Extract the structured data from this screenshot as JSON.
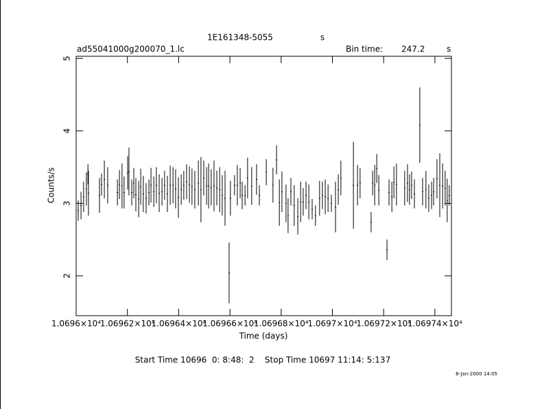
{
  "chart_data": {
    "type": "errorbar",
    "title": "1E161348-5055",
    "title_unit": "s",
    "file_name": "ad55041000g200070_1.lc",
    "bin_time_label": "Bin time:",
    "bin_time": "247.2",
    "bin_time_unit": "s",
    "xlabel": "Time (days)",
    "ylabel": "Counts/s",
    "footer": "Start Time 10696  0: 8:48:  2    Stop Time 10697 11:14: 5:137",
    "date": "6-Jan-2000 14:05",
    "color": "#000000",
    "xlim": [
      10696,
      10697.4645
    ],
    "ylim": [
      1.45,
      5.03
    ],
    "xticks": [
      {
        "value": 10696,
        "label": "1.0696×10⁴"
      },
      {
        "value": 10696.2,
        "label": "1.06962×10⁴"
      },
      {
        "value": 10696.4,
        "label": "1.06964×10⁴"
      },
      {
        "value": 10696.6,
        "label": "1.06966×10⁴"
      },
      {
        "value": 10696.8,
        "label": "1.06968×10⁴"
      },
      {
        "value": 10697,
        "label": "1.0697×10⁴"
      },
      {
        "value": 10697.2,
        "label": "1.06972×10⁴"
      },
      {
        "value": 10697.4,
        "label": "1.06974×10⁴"
      }
    ],
    "yticks": [
      2,
      3,
      4,
      5
    ],
    "x": [
      10696.008,
      10696.019,
      10696.029,
      10696.04,
      10696.046,
      10696.048,
      10696.091,
      10696.099,
      10696.11,
      10696.123,
      10696.161,
      10696.169,
      10696.179,
      10696.187,
      10696.201,
      10696.206,
      10696.217,
      10696.225,
      10696.233,
      10696.244,
      10696.252,
      10696.262,
      10696.273,
      10696.284,
      10696.292,
      10696.303,
      10696.313,
      10696.324,
      10696.335,
      10696.345,
      10696.356,
      10696.367,
      10696.378,
      10696.388,
      10696.399,
      10696.41,
      10696.42,
      10696.431,
      10696.442,
      10696.452,
      10696.463,
      10696.477,
      10696.487,
      10696.498,
      10696.509,
      10696.517,
      10696.527,
      10696.538,
      10696.549,
      10696.56,
      10696.57,
      10696.581,
      10696.597,
      10696.602,
      10696.618,
      10696.629,
      10696.64,
      10696.648,
      10696.659,
      10696.669,
      10696.685,
      10696.704,
      10696.715,
      10696.742,
      10696.768,
      10696.782,
      10696.793,
      10696.803,
      10696.819,
      10696.827,
      10696.838,
      10696.851,
      10696.865,
      10696.876,
      10696.886,
      10696.897,
      10696.908,
      10696.921,
      10696.934,
      10696.95,
      10696.961,
      10696.972,
      10696.983,
      10696.996,
      10697.012,
      10697.023,
      10697.033,
      10697.082,
      10697.098,
      10697.108,
      10697.151,
      10697.157,
      10697.165,
      10697.173,
      10697.181,
      10697.213,
      10697.221,
      10697.232,
      10697.24,
      10697.25,
      10697.282,
      10697.293,
      10697.301,
      10697.309,
      10697.32,
      10697.341,
      10697.352,
      10697.365,
      10697.376,
      10697.387,
      10697.395,
      10697.408,
      10697.419,
      10697.43,
      10697.44,
      10697.448,
      10697.456
    ],
    "values": [
      2.9,
      2.97,
      3.09,
      3.2,
      3.4,
      3.14,
      3.11,
      3.26,
      3.33,
      3.25,
      3.15,
      3.26,
      3.24,
      3.15,
      3.42,
      3.44,
      3.15,
      3.28,
      3.12,
      3.06,
      3.23,
      3.13,
      3.07,
      3.15,
      3.25,
      3.16,
      3.25,
      3.14,
      3.16,
      3.25,
      3.13,
      3.25,
      3.25,
      3.2,
      3.08,
      3.19,
      3.25,
      3.3,
      3.26,
      3.23,
      3.19,
      3.28,
      3.19,
      3.35,
      3.24,
      3.24,
      3.22,
      3.24,
      3.21,
      3.19,
      3.11,
      3.07,
      2.04,
      3.07,
      3.25,
      3.25,
      3.28,
      3.11,
      3.11,
      3.35,
      3.24,
      3.33,
      3.11,
      3.43,
      3.25,
      3.6,
      3.01,
      3.16,
      3.0,
      2.83,
      3.16,
      2.97,
      2.82,
      3.02,
      3.02,
      3.11,
      3.02,
      2.92,
      2.83,
      3.07,
      3.11,
      3.09,
      3.07,
      3.0,
      2.95,
      3.19,
      3.35,
      3.25,
      3.25,
      3.28,
      2.74,
      3.28,
      3.25,
      3.48,
      3.18,
      2.36,
      3.15,
      3.09,
      3.29,
      3.26,
      3.21,
      3.28,
      3.19,
      3.25,
      3.13,
      4.08,
      3.16,
      3.19,
      3.07,
      3.11,
      3.16,
      3.34,
      3.25,
      3.24,
      3.21,
      3.04,
      3.11
    ],
    "errors": [
      0.14,
      0.19,
      0.21,
      0.23,
      0.14,
      0.31,
      0.24,
      0.15,
      0.26,
      0.25,
      0.18,
      0.2,
      0.31,
      0.22,
      0.23,
      0.33,
      0.18,
      0.21,
      0.23,
      0.25,
      0.25,
      0.25,
      0.21,
      0.18,
      0.24,
      0.21,
      0.25,
      0.26,
      0.19,
      0.2,
      0.25,
      0.27,
      0.25,
      0.27,
      0.28,
      0.21,
      0.2,
      0.24,
      0.25,
      0.25,
      0.26,
      0.31,
      0.45,
      0.24,
      0.26,
      0.31,
      0.25,
      0.35,
      0.24,
      0.31,
      0.28,
      0.38,
      0.42,
      0.24,
      0.14,
      0.28,
      0.21,
      0.19,
      0.14,
      0.28,
      0.26,
      0.21,
      0.14,
      0.18,
      0.24,
      0.2,
      0.32,
      0.28,
      0.26,
      0.24,
      0.19,
      0.28,
      0.25,
      0.28,
      0.19,
      0.19,
      0.24,
      0.14,
      0.14,
      0.24,
      0.19,
      0.24,
      0.19,
      0.12,
      0.35,
      0.21,
      0.24,
      0.6,
      0.28,
      0.21,
      0.14,
      0.17,
      0.28,
      0.2,
      0.21,
      0.14,
      0.18,
      0.21,
      0.22,
      0.29,
      0.24,
      0.26,
      0.21,
      0.19,
      0.2,
      0.52,
      0.19,
      0.26,
      0.19,
      0.19,
      0.19,
      0.27,
      0.44,
      0.31,
      0.24,
      0.3,
      0.14
    ]
  }
}
